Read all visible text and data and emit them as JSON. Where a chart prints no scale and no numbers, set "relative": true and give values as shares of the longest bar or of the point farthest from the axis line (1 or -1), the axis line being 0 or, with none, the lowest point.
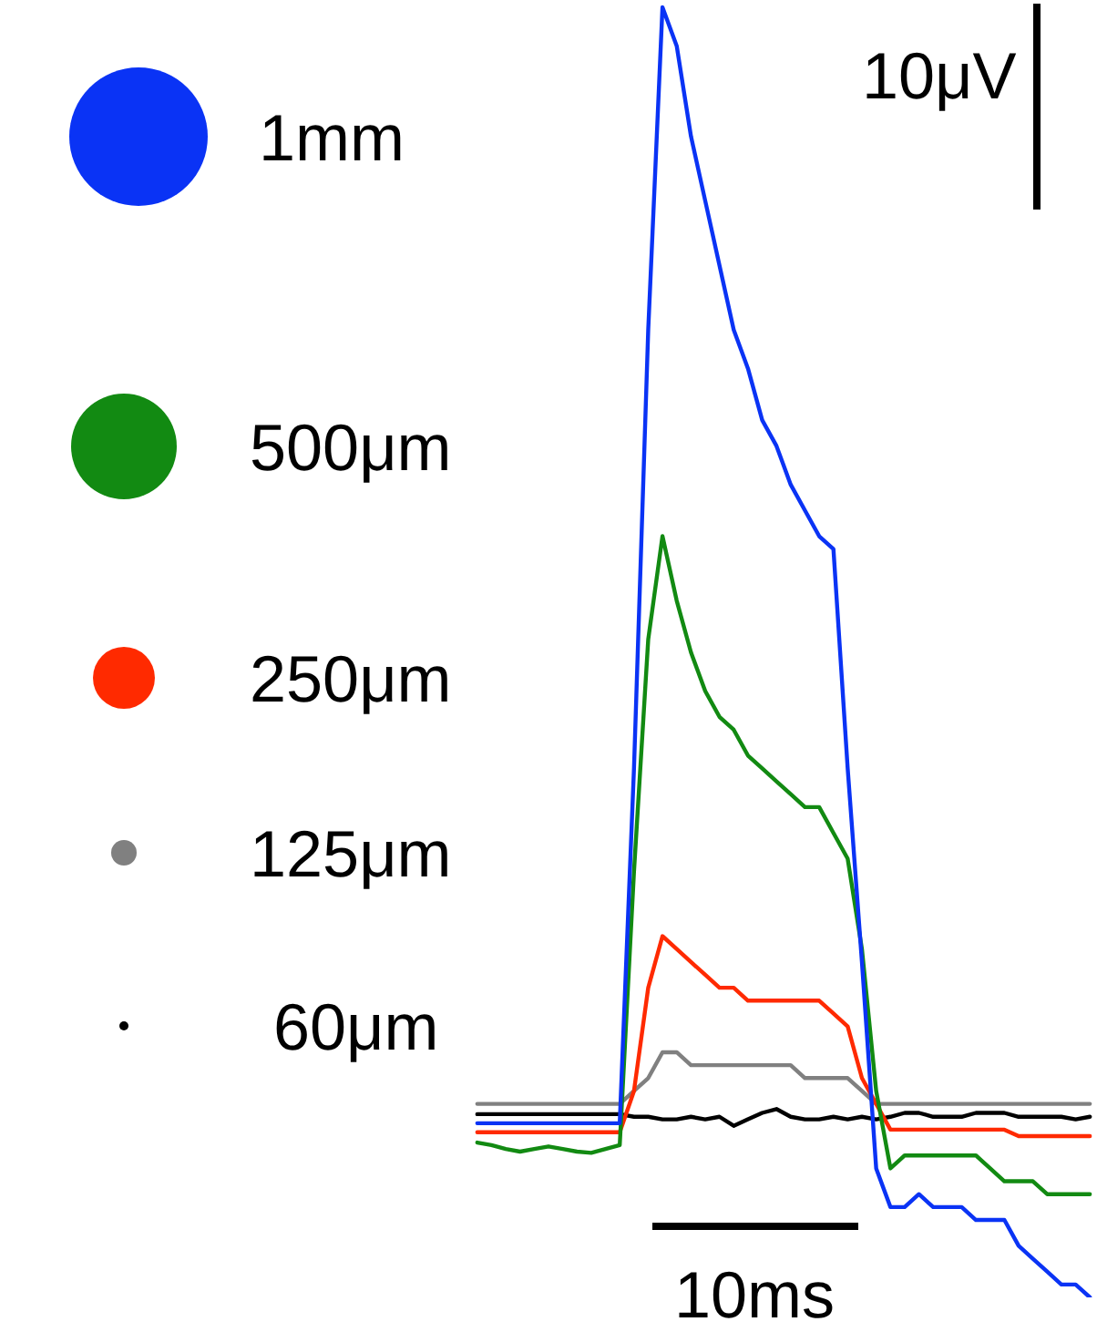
{
  "chart_data": {
    "type": "line",
    "relative": true,
    "legend": "left",
    "categories": [
      null,
      null,
      null,
      null,
      null,
      null,
      null,
      null,
      null,
      null,
      null,
      null,
      null,
      null,
      null,
      null,
      null,
      null,
      null,
      null,
      null,
      null,
      null,
      null,
      null,
      null,
      null,
      null,
      null,
      null,
      null,
      null,
      null,
      null,
      null,
      null,
      null,
      null,
      null,
      null,
      null,
      null,
      null,
      null
    ],
    "series": [
      {
        "name": "1mm",
        "color": "#0a33f5",
        "values": [
          0.135,
          0.135,
          0.135,
          0.135,
          0.135,
          0.135,
          0.135,
          0.135,
          0.135,
          0.135,
          0.135,
          0.41,
          0.75,
          1.0,
          0.97,
          0.9,
          0.85,
          0.8,
          0.75,
          0.72,
          0.68,
          0.66,
          0.63,
          0.61,
          0.59,
          0.58,
          0.41,
          0.26,
          0.1,
          0.07,
          0.07,
          0.08,
          0.07,
          0.07,
          0.07,
          0.06,
          0.06,
          0.06,
          0.04,
          0.03,
          0.02,
          0.01,
          0.01,
          0
        ]
      },
      {
        "name": "500μm",
        "color": "#128a12",
        "values": [
          0.12,
          0.118,
          0.115,
          0.113,
          0.115,
          0.117,
          0.115,
          0.113,
          0.112,
          0.115,
          0.118,
          0.33,
          0.51,
          0.59,
          0.54,
          0.5,
          0.47,
          0.45,
          0.44,
          0.42,
          0.41,
          0.4,
          0.39,
          0.38,
          0.38,
          0.36,
          0.34,
          0.27,
          0.16,
          0.1,
          0.11,
          0.11,
          0.11,
          0.11,
          0.11,
          0.11,
          0.1,
          0.09,
          0.09,
          0.09,
          0.08,
          0.08,
          0.08,
          0.08
        ]
      },
      {
        "name": "250μm",
        "color": "#ff2a00",
        "values": [
          0.128,
          0.128,
          0.128,
          0.128,
          0.128,
          0.128,
          0.128,
          0.128,
          0.128,
          0.128,
          0.128,
          0.16,
          0.24,
          0.28,
          0.27,
          0.26,
          0.25,
          0.24,
          0.24,
          0.23,
          0.23,
          0.23,
          0.23,
          0.23,
          0.23,
          0.22,
          0.21,
          0.17,
          0.15,
          0.13,
          0.13,
          0.13,
          0.13,
          0.13,
          0.13,
          0.13,
          0.13,
          0.13,
          0.125,
          0.125,
          0.125,
          0.125,
          0.125,
          0.125
        ]
      },
      {
        "name": "125μm",
        "color": "#808080",
        "values": [
          0.15,
          0.15,
          0.15,
          0.15,
          0.15,
          0.15,
          0.15,
          0.15,
          0.15,
          0.15,
          0.15,
          0.16,
          0.17,
          0.19,
          0.19,
          0.18,
          0.18,
          0.18,
          0.18,
          0.18,
          0.18,
          0.18,
          0.18,
          0.17,
          0.17,
          0.17,
          0.17,
          0.16,
          0.15,
          0.15,
          0.15,
          0.15,
          0.15,
          0.15,
          0.15,
          0.15,
          0.15,
          0.15,
          0.15,
          0.15,
          0.15,
          0.15,
          0.15,
          0.15
        ]
      },
      {
        "name": "60μm",
        "color": "#000000",
        "values": [
          0.142,
          0.142,
          0.142,
          0.142,
          0.142,
          0.142,
          0.142,
          0.142,
          0.142,
          0.142,
          0.142,
          0.14,
          0.14,
          0.138,
          0.138,
          0.14,
          0.138,
          0.14,
          0.133,
          0.138,
          0.143,
          0.146,
          0.14,
          0.138,
          0.138,
          0.14,
          0.138,
          0.14,
          0.138,
          0.14,
          0.143,
          0.143,
          0.14,
          0.14,
          0.14,
          0.143,
          0.143,
          0.143,
          0.14,
          0.14,
          0.14,
          0.14,
          0.138,
          0.14
        ]
      }
    ],
    "annotations": [
      "10μV",
      "10ms"
    ]
  }
}
